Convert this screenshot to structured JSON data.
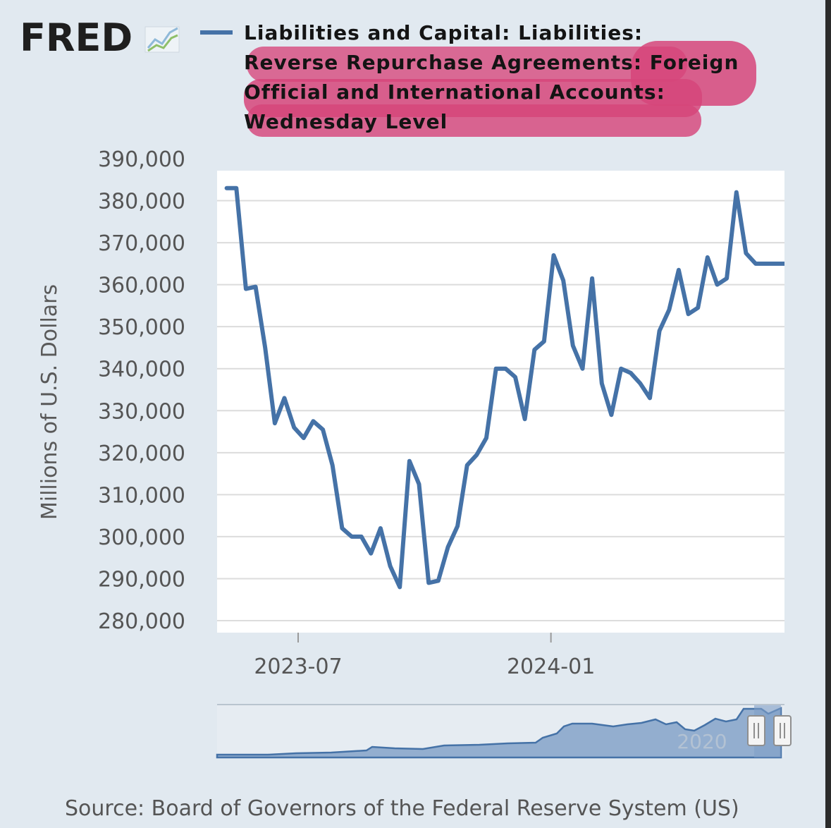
{
  "brand": {
    "logo_text": "FRED"
  },
  "chart_data": {
    "type": "line",
    "title": "Liabilities and Capital: Liabilities: Reverse Repurchase Agreements: Foreign Official and International Accounts: Wednesday Level",
    "title_lines": [
      "Liabilities and Capital: Liabilities:",
      "Reverse Repurchase Agreements: Foreign",
      "Official and International Accounts:",
      "Wednesday Level"
    ],
    "ylabel": "Millions of U.S. Dollars",
    "ylim": [
      280000,
      390000
    ],
    "yticks": [
      280000,
      290000,
      300000,
      310000,
      320000,
      330000,
      340000,
      350000,
      360000,
      370000,
      380000,
      390000
    ],
    "ytick_labels": [
      "280,000",
      "290,000",
      "300,000",
      "310,000",
      "320,000",
      "330,000",
      "340,000",
      "350,000",
      "360,000",
      "370,000",
      "380,000",
      "390,000"
    ],
    "xlim": [
      "2023-05-03",
      "2024-06-19"
    ],
    "xticks": [
      "2023-07-01",
      "2024-01-01"
    ],
    "xtick_labels": [
      "2023-07",
      "2024-01"
    ],
    "grid": true,
    "line_color": "#4572a7",
    "series": [
      {
        "x": [
          "2023-05-10",
          "2023-05-17",
          "2023-05-24",
          "2023-05-31",
          "2023-06-07",
          "2023-06-14",
          "2023-06-21",
          "2023-06-28",
          "2023-07-05",
          "2023-07-12",
          "2023-07-19",
          "2023-07-26",
          "2023-08-02",
          "2023-08-09",
          "2023-08-16",
          "2023-08-23",
          "2023-08-30",
          "2023-09-06",
          "2023-09-13",
          "2023-09-20",
          "2023-09-27",
          "2023-10-04",
          "2023-10-11",
          "2023-10-18",
          "2023-10-25",
          "2023-11-01",
          "2023-11-08",
          "2023-11-15",
          "2023-11-22",
          "2023-11-29",
          "2023-12-06",
          "2023-12-13",
          "2023-12-20",
          "2023-12-27",
          "2024-01-03",
          "2024-01-10",
          "2024-01-17",
          "2024-01-24",
          "2024-01-31",
          "2024-02-07",
          "2024-02-14",
          "2024-02-21",
          "2024-02-28",
          "2024-03-06",
          "2024-03-13",
          "2024-03-20",
          "2024-03-27",
          "2024-04-03",
          "2024-04-10",
          "2024-04-17",
          "2024-04-24",
          "2024-05-01",
          "2024-05-08",
          "2024-05-15",
          "2024-05-22",
          "2024-05-29",
          "2024-06-05",
          "2024-06-12",
          "2024-06-19"
        ],
        "values": [
          383000,
          383000,
          359000,
          359500,
          345000,
          327000,
          333000,
          326000,
          323500,
          327500,
          325500,
          317000,
          302000,
          300000,
          300000,
          296000,
          302000,
          293000,
          288000,
          318000,
          312500,
          289000,
          289500,
          297500,
          302500,
          317000,
          319500,
          323500,
          340000,
          340000,
          338000,
          328000,
          344500,
          346500,
          367000,
          361000,
          345500,
          340000,
          361500,
          336500,
          329000,
          340000,
          339000,
          336500,
          333000,
          349000,
          354000,
          363500,
          353000,
          354500,
          366500,
          360000,
          361500,
          382000,
          367500,
          365000,
          365000,
          365000,
          365000
        ]
      }
    ],
    "navigator": {
      "label": "2020"
    },
    "source": "Source: Board of Governors of the Federal Reserve System (US)"
  }
}
